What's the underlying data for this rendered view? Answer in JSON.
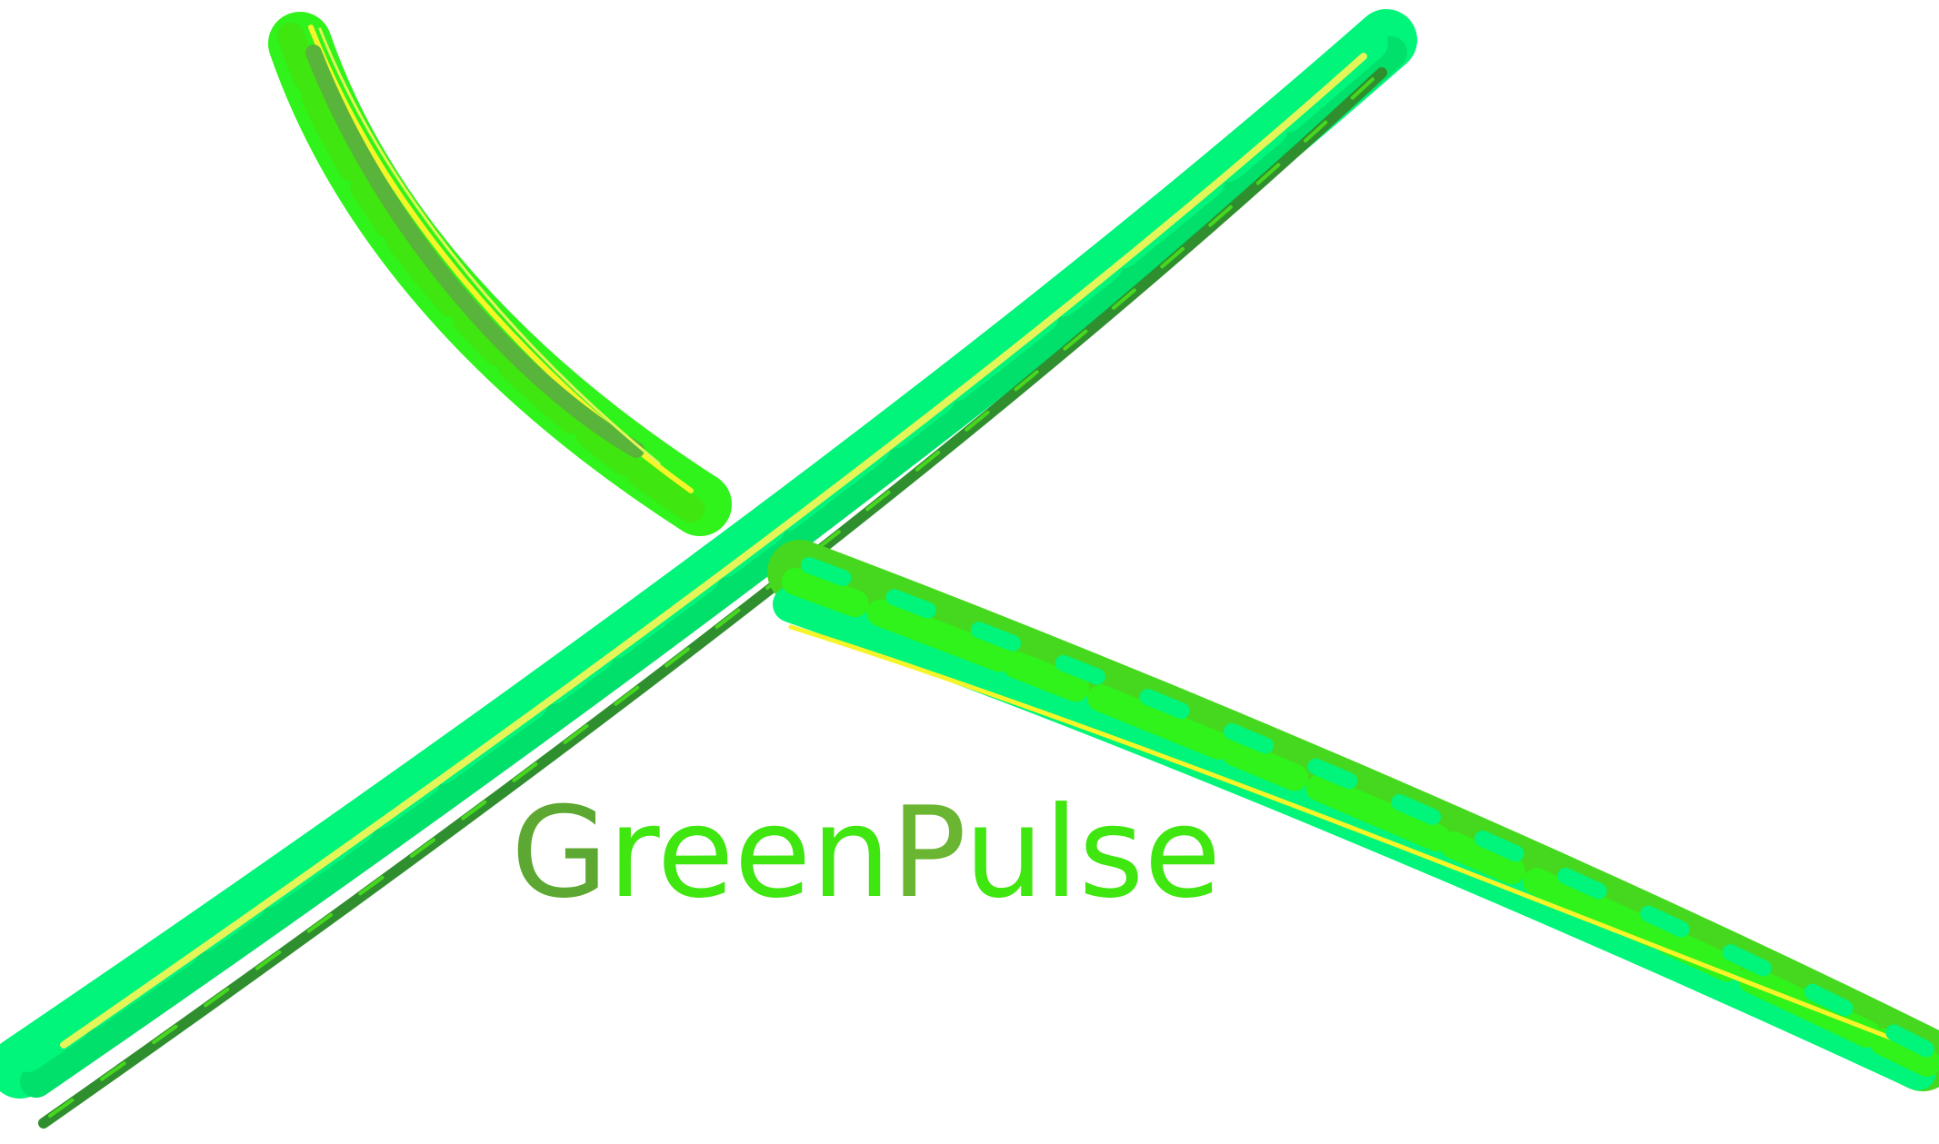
{
  "brand": {
    "letters": [
      {
        "char": "G",
        "color": "#5ca832"
      },
      {
        "char": "r",
        "color": "#3fe60f"
      },
      {
        "char": "e",
        "color": "#3fe60f"
      },
      {
        "char": "e",
        "color": "#3fe60f"
      },
      {
        "char": "n",
        "color": "#3fe60f"
      },
      {
        "char": "P",
        "color": "#6ab532"
      },
      {
        "char": "u",
        "color": "#3fe60f"
      },
      {
        "char": "l",
        "color": "#3fe60f"
      },
      {
        "char": "s",
        "color": "#3fe60f"
      },
      {
        "char": "e",
        "color": "#3fe60f"
      }
    ]
  },
  "colors": {
    "background": "#ffffff",
    "mint": "#00f57a",
    "bright_green": "#2ff31a",
    "leaf_green": "#46d81e",
    "dark_green": "#2f8f2f",
    "olive_green": "#58b43a",
    "yellow": "#f5f52a",
    "pale_yellow": "#e4f55a"
  }
}
